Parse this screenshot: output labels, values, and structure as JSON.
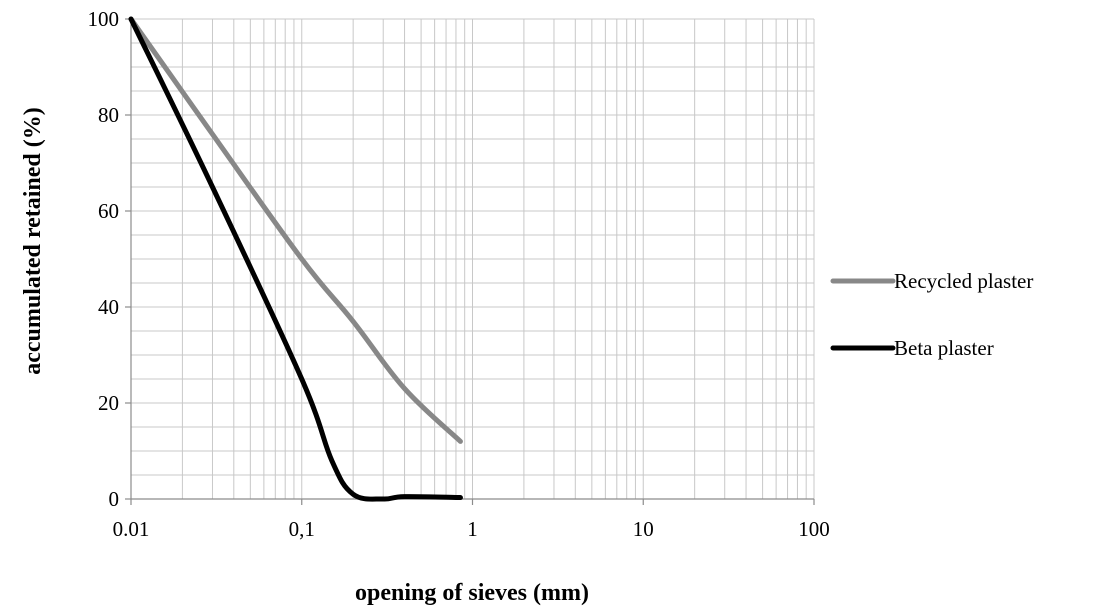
{
  "chart_data": {
    "type": "line",
    "x_scale": "log",
    "xlabel": "opening of sieves (mm)",
    "ylabel": "accumulated retained (%)",
    "xlim": [
      0.01,
      100
    ],
    "ylim": [
      0,
      100
    ],
    "x_ticks": [
      {
        "value": 0.01,
        "label": "0.01"
      },
      {
        "value": 0.1,
        "label": "0,1"
      },
      {
        "value": 1,
        "label": "1"
      },
      {
        "value": 10,
        "label": "10"
      },
      {
        "value": 100,
        "label": "100"
      }
    ],
    "y_ticks": [
      {
        "value": 0,
        "label": "0"
      },
      {
        "value": 20,
        "label": "20"
      },
      {
        "value": 40,
        "label": "40"
      },
      {
        "value": 60,
        "label": "60"
      },
      {
        "value": 80,
        "label": "80"
      },
      {
        "value": 100,
        "label": "100"
      }
    ],
    "grid": {
      "major": true,
      "minor_x": true,
      "minor_y_step": 5
    },
    "legend_position": "right",
    "series": [
      {
        "name": "Recycled plaster",
        "color": "#888888",
        "points": [
          [
            0.01,
            100
          ],
          [
            0.03,
            76
          ],
          [
            0.1,
            50
          ],
          [
            0.2,
            37
          ],
          [
            0.4,
            23
          ],
          [
            0.85,
            12
          ]
        ]
      },
      {
        "name": "Beta plaster",
        "color": "#000000",
        "points": [
          [
            0.01,
            100
          ],
          [
            0.03,
            65
          ],
          [
            0.1,
            25
          ],
          [
            0.15,
            8
          ],
          [
            0.2,
            1
          ],
          [
            0.3,
            0
          ],
          [
            0.4,
            0.5
          ],
          [
            0.85,
            0.3
          ]
        ]
      }
    ]
  }
}
